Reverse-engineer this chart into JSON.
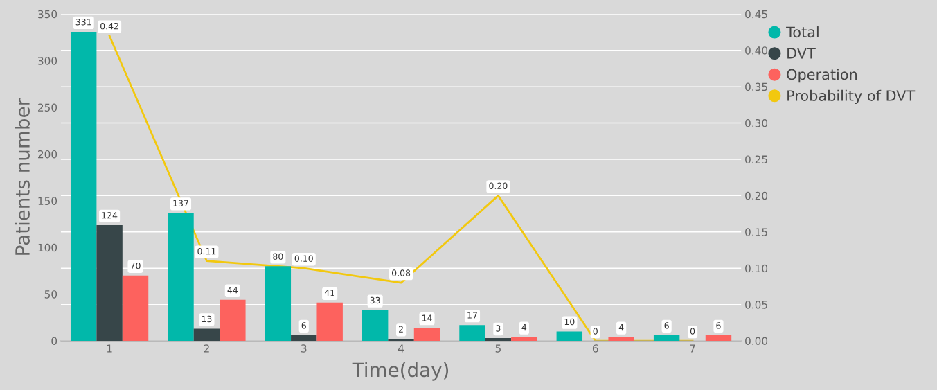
{
  "chart_data": {
    "type": "bar",
    "xlabel": "Time(day)",
    "ylabel": "Patients number",
    "categories": [
      "1",
      "2",
      "3",
      "4",
      "5",
      "6",
      "7"
    ],
    "series": [
      {
        "name": "Total",
        "color": "#01b8aa",
        "values": [
          331,
          137,
          80,
          33,
          17,
          10,
          6
        ],
        "value_labels": [
          "331",
          "137",
          "80",
          "33",
          "17",
          "10",
          "6"
        ]
      },
      {
        "name": "DVT",
        "color": "#374649",
        "values": [
          124,
          13,
          6,
          2,
          3,
          0,
          0
        ],
        "value_labels": [
          "124",
          "13",
          "6",
          "2",
          "3",
          "0",
          "0"
        ]
      },
      {
        "name": "Operation",
        "color": "#fd625e",
        "values": [
          70,
          44,
          41,
          14,
          4,
          4,
          6
        ],
        "value_labels": [
          "70",
          "44",
          "41",
          "14",
          "4",
          "4",
          "6"
        ]
      },
      {
        "name": "Probability of DVT",
        "type": "line",
        "axis": "y2",
        "color": "#f2c80f",
        "values": [
          0.42,
          0.11,
          0.1,
          0.08,
          0.2,
          0,
          0
        ],
        "value_labels": [
          "0.42",
          "0.11",
          "0.10",
          "0.08",
          "0.20",
          null,
          null
        ]
      }
    ],
    "ylim": [
      0,
      350
    ],
    "yticks": [
      0,
      50,
      100,
      150,
      200,
      250,
      300,
      350
    ],
    "y2lim": [
      0,
      0.45
    ],
    "y2ticks": [
      {
        "value": 0,
        "label": "0.00"
      },
      {
        "value": 0.05,
        "label": "0.05"
      },
      {
        "value": 0.1,
        "label": "0.10"
      },
      {
        "value": 0.15,
        "label": "0.15"
      },
      {
        "value": 0.2,
        "label": "0.20"
      },
      {
        "value": 0.25,
        "label": "0.25"
      },
      {
        "value": 0.3,
        "label": "0.30"
      },
      {
        "value": 0.35,
        "label": "0.35"
      },
      {
        "value": 0.4,
        "label": "0.40"
      },
      {
        "value": 0.45,
        "label": "0.45"
      }
    ],
    "grid": "y",
    "legend": "right",
    "marker": "none"
  }
}
